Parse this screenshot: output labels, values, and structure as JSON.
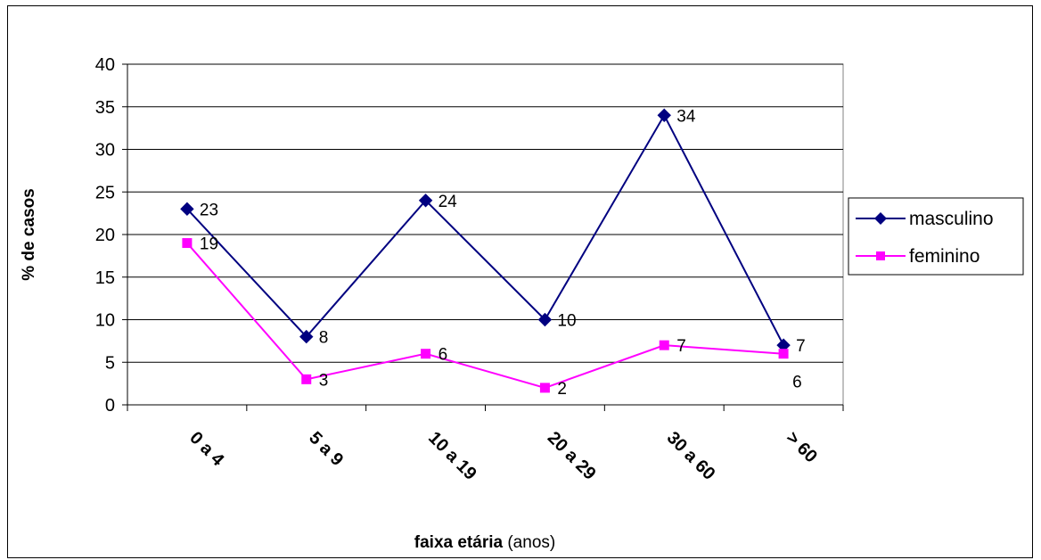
{
  "chart_data": {
    "type": "line",
    "categories": [
      "0 a 4",
      "5 a 9",
      "10 a 19",
      "20 a 29",
      "30 a 60",
      "> 60"
    ],
    "series": [
      {
        "name": "masculino",
        "values": [
          23,
          8,
          24,
          10,
          34,
          7
        ],
        "color": "#000080",
        "marker": "diamond"
      },
      {
        "name": "feminino",
        "values": [
          19,
          3,
          6,
          2,
          7,
          6
        ],
        "color": "#FF00FF",
        "marker": "square"
      }
    ],
    "title": "",
    "xlabel_bold": "faixa etária",
    "xlabel_rest": " (anos)",
    "ylabel": "% de casos",
    "ylim": [
      0,
      40
    ],
    "yticks": [
      0,
      5,
      10,
      15,
      20,
      25,
      30,
      35,
      40
    ],
    "grid": true,
    "legend_position": "right"
  }
}
